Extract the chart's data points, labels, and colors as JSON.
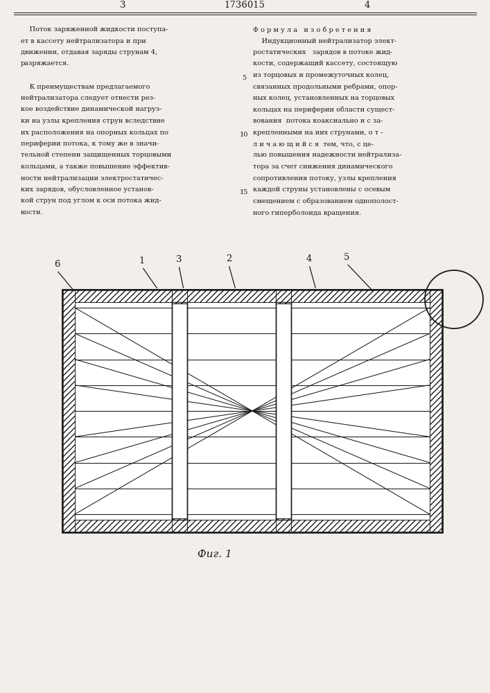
{
  "bg_color": "#f2efea",
  "line_color": "#1a1a1a",
  "page_number_left": "3",
  "patent_number": "1736015",
  "page_number_right": "4",
  "fig_caption": "Фиг. 1",
  "text_left": [
    "    Поток заряженной жидкости поступа-",
    "ет в кассету нейтрализатора и при",
    "движении, отдавая заряды струнам 4,",
    "разряжается.",
    "",
    "    К преимуществам предлагаемого",
    "нейтрализатора следует отнести рез-",
    "кое воздействие динамической нагруз-",
    "ки на узлы крепления струн вследствие",
    "их расположения на опорных кольцах по",
    "периферии потока, к тому же в значи-",
    "тельной степени защищенных торцовыми",
    "кольцами, а также повышение эффектив-",
    "ности нейтрализации электростатичес-",
    "ких зарядов, обусловленное установ-",
    "кой струн под углом к оси потока жид-",
    "кости."
  ],
  "text_right": [
    "Ф о р м у л а   и з о б р е т е н и я",
    "    Индукционный нейтрализатор элект-",
    "ростатических   зарядов в потоке жид-",
    "кости, содержащий кассету, состоящую",
    "из торцовых и промежуточных колец,",
    "связанных продольными ребрами, опор-",
    "ных колец, установленных на торцовых",
    "кольцах на периферии области сущест-",
    "вования  потока коаксиально и с за-",
    "крепленными на них струнами, о т -",
    "л и ч а ю щ и й с я  тем, что, с це-",
    "лью повышения надежности нейтрализа-",
    "тора за счет снижения динамического",
    "сопротивления потоку, узлы крепления",
    "каждой струны установлены с осевым",
    "смещением с образованием однополост-",
    "ного гиперболоида вращения."
  ]
}
